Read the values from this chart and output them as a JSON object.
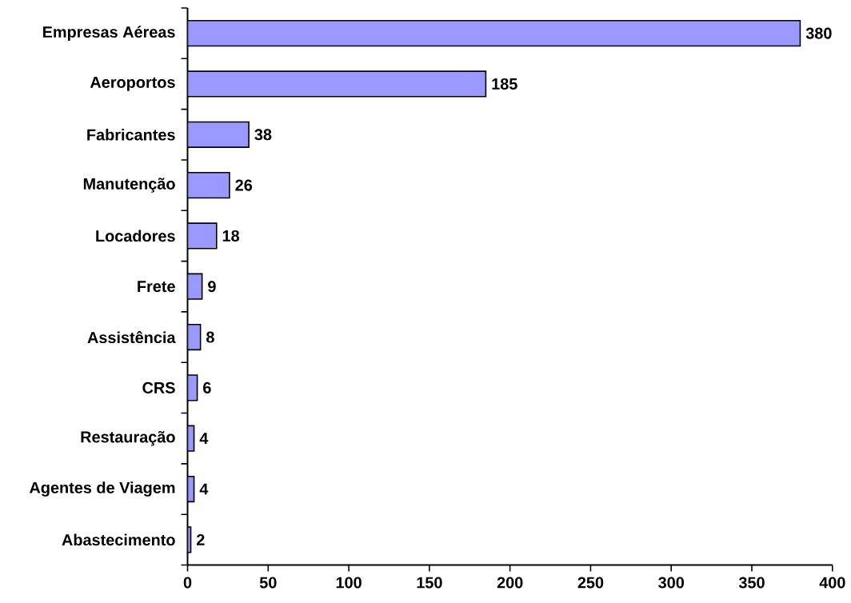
{
  "chart_data": {
    "type": "bar",
    "orientation": "horizontal",
    "categories": [
      "Empresas Aéreas",
      "Aeroportos",
      "Fabricantes",
      "Manutenção",
      "Locadores",
      "Frete",
      "Assistência",
      "CRS",
      "Restauração",
      "Agentes de Viagem",
      "Abastecimento"
    ],
    "values": [
      380,
      185,
      38,
      26,
      18,
      9,
      8,
      6,
      4,
      4,
      2
    ],
    "color": "#9999ff",
    "xlim": [
      0,
      400
    ],
    "xticks": [
      0,
      50,
      100,
      150,
      200,
      250,
      300,
      350,
      400
    ],
    "data_labels": true,
    "grid": false
  }
}
